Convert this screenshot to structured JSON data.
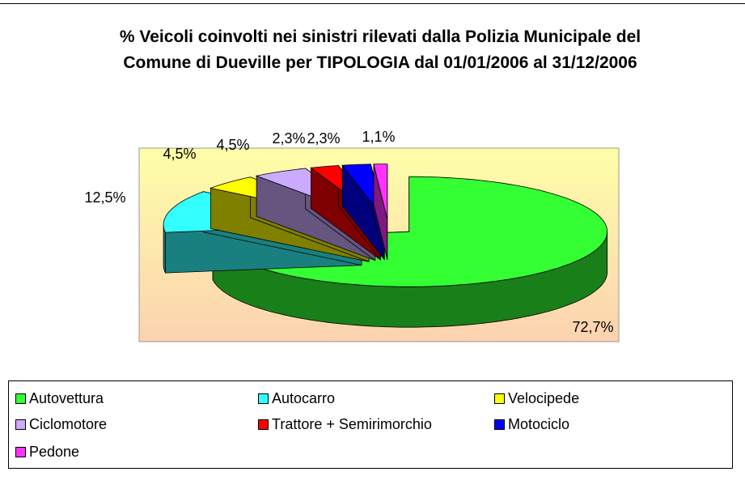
{
  "chart_data": {
    "type": "pie",
    "title": "% Veicoli coinvolti nei sinistri rilevati dalla Polizia Municipale del Comune di Dueville per TIPOLOGIA dal 01/01/2006 al 31/12/2006",
    "categories": [
      "Autovettura",
      "Autocarro",
      "Velocipede",
      "Ciclomotore",
      "Trattore + Semirimorchio",
      "Motociclo",
      "Pedone"
    ],
    "values": [
      72.7,
      12.5,
      4.5,
      4.5,
      2.3,
      2.3,
      1.1
    ],
    "value_labels": [
      "72,7%",
      "12,5%",
      "4,5%",
      "4,5%",
      "2,3%",
      "2,3%",
      "1,1%"
    ],
    "colors": [
      "#33ff33",
      "#33ffff",
      "#ffff00",
      "#ccaaff",
      "#ff0000",
      "#0000ff",
      "#ff33ff"
    ]
  }
}
